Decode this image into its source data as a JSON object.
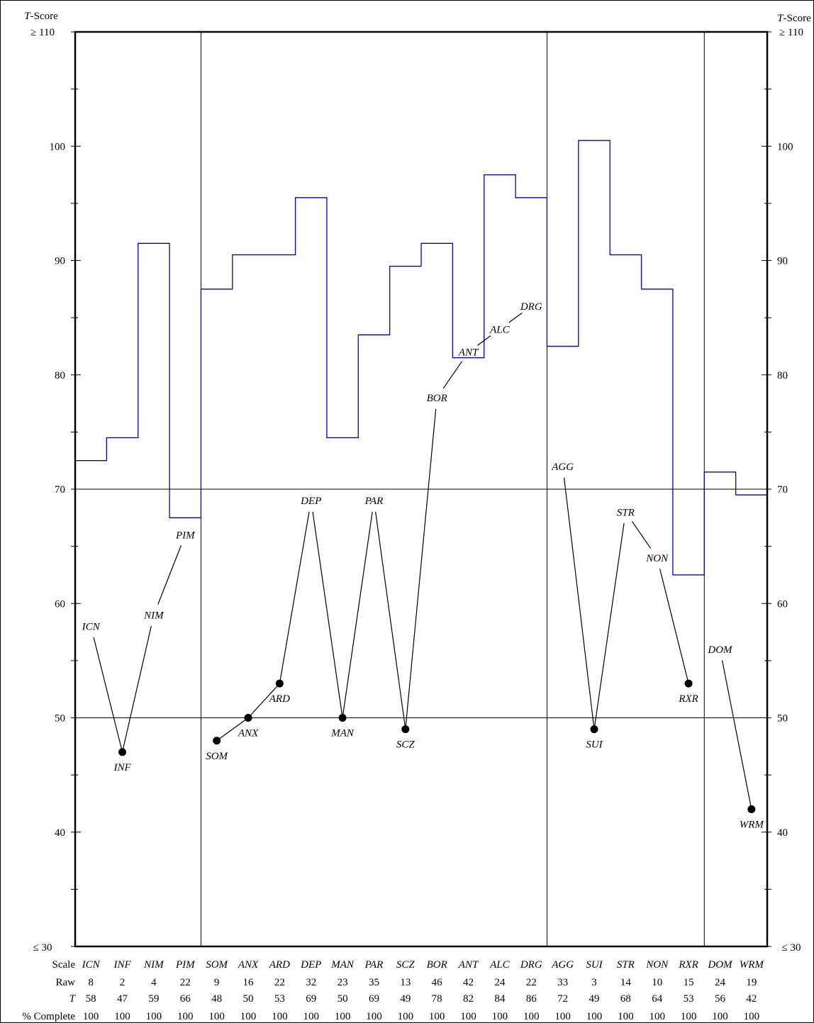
{
  "chart_data": {
    "type": "line",
    "left_axis": {
      "title_italic": "T",
      "title_rest": "-Score",
      "top_label": "≥ 110",
      "bottom_label": "≤ 30"
    },
    "right_axis": {
      "title_italic": "T",
      "title_rest": "-Score",
      "top_label": "≥ 110",
      "bottom_label": "≤ 30"
    },
    "ylim": [
      30,
      110
    ],
    "yticks": [
      {
        "v": 40,
        "label": "40"
      },
      {
        "v": 50,
        "label": "50"
      },
      {
        "v": 60,
        "label": "60"
      },
      {
        "v": 70,
        "label": "70"
      },
      {
        "v": 80,
        "label": "80"
      },
      {
        "v": 90,
        "label": "90"
      },
      {
        "v": 100,
        "label": "100"
      }
    ],
    "reference_lines": [
      50,
      70
    ],
    "group_dividers_after": [
      "PIM",
      "DRG",
      "RXR"
    ],
    "row_labels": {
      "scale": "Scale",
      "raw": "Raw",
      "t_italic": "T",
      "complete": "% Complete"
    },
    "scales": [
      {
        "name": "ICN",
        "raw": "8",
        "t": 58,
        "complete": "100",
        "marker": false
      },
      {
        "name": "INF",
        "raw": "2",
        "t": 47,
        "complete": "100",
        "marker": true
      },
      {
        "name": "NIM",
        "raw": "4",
        "t": 59,
        "complete": "100",
        "marker": false
      },
      {
        "name": "PIM",
        "raw": "22",
        "t": 66,
        "complete": "100",
        "marker": false
      },
      {
        "name": "SOM",
        "raw": "9",
        "t": 48,
        "complete": "100",
        "marker": true
      },
      {
        "name": "ANX",
        "raw": "16",
        "t": 50,
        "complete": "100",
        "marker": true
      },
      {
        "name": "ARD",
        "raw": "22",
        "t": 53,
        "complete": "100",
        "marker": true
      },
      {
        "name": "DEP",
        "raw": "32",
        "t": 69,
        "complete": "100",
        "marker": false
      },
      {
        "name": "MAN",
        "raw": "23",
        "t": 50,
        "complete": "100",
        "marker": true
      },
      {
        "name": "PAR",
        "raw": "35",
        "t": 69,
        "complete": "100",
        "marker": false
      },
      {
        "name": "SCZ",
        "raw": "13",
        "t": 49,
        "complete": "100",
        "marker": true
      },
      {
        "name": "BOR",
        "raw": "46",
        "t": 78,
        "complete": "100",
        "marker": false
      },
      {
        "name": "ANT",
        "raw": "42",
        "t": 82,
        "complete": "100",
        "marker": false
      },
      {
        "name": "ALC",
        "raw": "24",
        "t": 84,
        "complete": "100",
        "marker": false
      },
      {
        "name": "DRG",
        "raw": "22",
        "t": 86,
        "complete": "100",
        "marker": false
      },
      {
        "name": "AGG",
        "raw": "33",
        "t": 72,
        "complete": "100",
        "marker": false
      },
      {
        "name": "SUI",
        "raw": "3",
        "t": 49,
        "complete": "100",
        "marker": true
      },
      {
        "name": "STR",
        "raw": "14",
        "t": 68,
        "complete": "100",
        "marker": false
      },
      {
        "name": "NON",
        "raw": "10",
        "t": 64,
        "complete": "100",
        "marker": false
      },
      {
        "name": "RXR",
        "raw": "15",
        "t": 53,
        "complete": "100",
        "marker": true
      },
      {
        "name": "DOM",
        "raw": "24",
        "t": 56,
        "complete": "100",
        "marker": false
      },
      {
        "name": "WRM",
        "raw": "19",
        "t": 42,
        "complete": "100",
        "marker": true
      }
    ],
    "profile_segments": [
      [
        "ICN",
        "INF",
        "NIM",
        "PIM"
      ],
      [
        "SOM",
        "ANX",
        "ARD",
        "DEP",
        "MAN",
        "PAR",
        "SCZ",
        "BOR",
        "ANT",
        "ALC",
        "DRG"
      ],
      [
        "AGG",
        "SUI",
        "STR",
        "NON",
        "RXR"
      ],
      [
        "DOM",
        "WRM"
      ]
    ],
    "upper_band": {
      "color": "#0000cc",
      "values": [
        72.5,
        74.5,
        91.5,
        67.5,
        87.5,
        90.5,
        90.5,
        95.5,
        74.5,
        83.5,
        89.5,
        91.5,
        81.5,
        97.5,
        95.5,
        82.5,
        100.5,
        90.5,
        87.5,
        62.5,
        71.5,
        69.5
      ]
    }
  }
}
